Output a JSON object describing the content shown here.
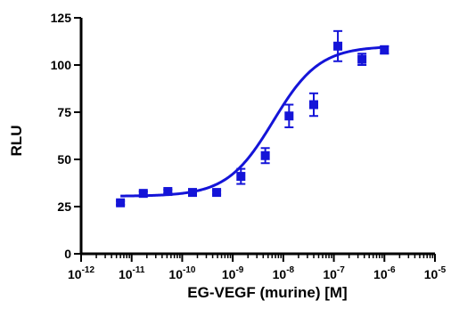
{
  "chart_data": {
    "type": "scatter",
    "title": "",
    "xlabel": "EG-VEGF (murine) [M]",
    "ylabel": "RLU",
    "xscale": "log",
    "xlim": [
      1e-12,
      1e-05
    ],
    "ylim": [
      0,
      125
    ],
    "grid": false,
    "legend": "none",
    "x_ticks": [
      {
        "value": 1e-12,
        "base": "10",
        "exp": "-12"
      },
      {
        "value": 1e-11,
        "base": "10",
        "exp": "-11"
      },
      {
        "value": 1e-10,
        "base": "10",
        "exp": "-10"
      },
      {
        "value": 1e-09,
        "base": "10",
        "exp": "-9"
      },
      {
        "value": 1e-08,
        "base": "10",
        "exp": "-8"
      },
      {
        "value": 1e-07,
        "base": "10",
        "exp": "-7"
      },
      {
        "value": 1e-06,
        "base": "10",
        "exp": "-6"
      },
      {
        "value": 1e-05,
        "base": "10",
        "exp": "-5"
      }
    ],
    "y_ticks": [
      {
        "value": 0,
        "label": "0"
      },
      {
        "value": 25,
        "label": "25"
      },
      {
        "value": 50,
        "label": "50"
      },
      {
        "value": 75,
        "label": "75"
      },
      {
        "value": 100,
        "label": "100"
      },
      {
        "value": 125,
        "label": "125"
      }
    ],
    "series": [
      {
        "color": "#1414d8",
        "points": [
          {
            "x": 6e-12,
            "y": 27,
            "err": 1
          },
          {
            "x": 1.7e-11,
            "y": 32,
            "err": 1
          },
          {
            "x": 5.2e-11,
            "y": 33,
            "err": 1
          },
          {
            "x": 1.6e-10,
            "y": 32.5,
            "err": 1
          },
          {
            "x": 4.8e-10,
            "y": 32.5,
            "err": 1
          },
          {
            "x": 1.45e-09,
            "y": 41,
            "err": 4
          },
          {
            "x": 4.4e-09,
            "y": 52,
            "err": 4
          },
          {
            "x": 1.3e-08,
            "y": 73,
            "err": 6
          },
          {
            "x": 4e-08,
            "y": 79,
            "err": 6
          },
          {
            "x": 1.2e-07,
            "y": 110,
            "err": 8
          },
          {
            "x": 3.6e-07,
            "y": 103,
            "err": 3
          },
          {
            "x": 1e-06,
            "y": 108,
            "err": 2
          }
        ],
        "fit": {
          "model": "four-parameter logistic",
          "bottom": 30.5,
          "top": 110,
          "logEC50": -8.2,
          "hill": 0.95,
          "x_from": 6e-12,
          "x_to": 1e-06
        }
      }
    ]
  }
}
